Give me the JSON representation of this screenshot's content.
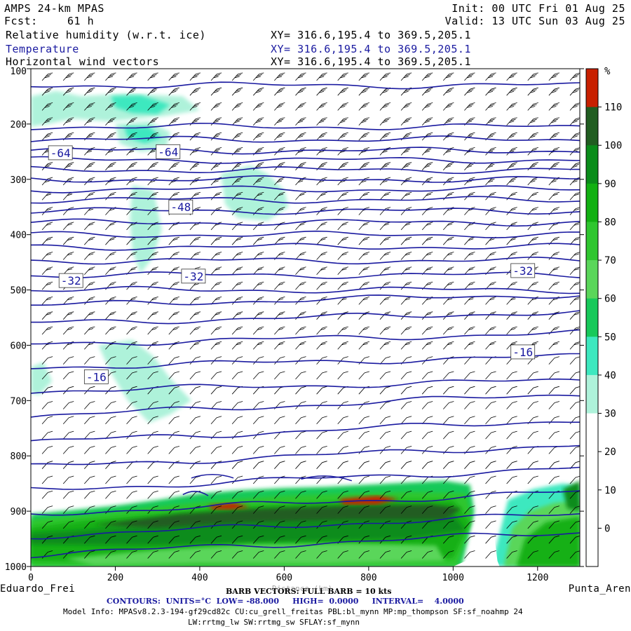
{
  "header": {
    "title": "AMPS 24-km MPAS",
    "forecast_label": "Fcst:",
    "forecast_value": "61 h",
    "init": "Init: 00 UTC Fri 01 Aug 25",
    "valid": "Valid: 13 UTC Sun 03 Aug 25",
    "fields": [
      {
        "name": "Relative humidity (w.r.t. ice)",
        "xy": "XY= 316.6,195.4 to 369.5,205.1"
      },
      {
        "name": "Temperature",
        "xy": "XY= 316.6,195.4 to 369.5,205.1"
      },
      {
        "name": "Horizontal wind vectors",
        "xy": "XY= 316.6,195.4 to 369.5,205.1"
      }
    ]
  },
  "footer": {
    "left_station": "Eduardo_Frei",
    "right_station": "Punta_Aren",
    "barb_info": "BARB VECTORS: FULL BARB = 10 kts",
    "xlabel": "Distance (km)",
    "contours": "CONTOURS:  UNITS=°C  LOW= -88.000     HIGH=  0.0000     INTERVAL=    4.0000",
    "model_info_1": "Model Info: MPASv8.2.3-194-gf29cd82c CU:cu_grell_freitas PBL:bl_mynn MP:mp_thompson SF:sf_noahmp 24",
    "model_info_2": "LW:rrtmg_lw SW:rrtmg_sw SFLAY:sf_mynn"
  },
  "colors": {
    "temp_contour": "#1a1aa0",
    "rh_30": "#aef2da",
    "rh_40": "#3de8bf",
    "rh_50": "#17c95a",
    "rh_60": "#5ad65a",
    "rh_70": "#2fc62f",
    "rh_80": "#12b012",
    "rh_90": "#0a8c1a",
    "rh_100": "#215d21",
    "rh_110": "#c82000"
  },
  "chart_data": {
    "type": "heatmap",
    "description_kind": "vertical cross-section",
    "x_range_km": [
      0,
      1300
    ],
    "y_range_hpa": [
      1000,
      100
    ],
    "x_ticks": [
      0,
      200,
      400,
      600,
      800,
      1000,
      1200
    ],
    "y_ticks": [
      100,
      200,
      300,
      400,
      500,
      600,
      700,
      800,
      900,
      1000
    ],
    "colorbar": {
      "unit": "%",
      "labels": [
        110,
        100,
        90,
        80,
        70,
        60,
        50,
        40,
        30,
        20,
        10,
        0
      ],
      "levels": [
        {
          "min": 110,
          "color": "#c82000"
        },
        {
          "min": 100,
          "color": "#215d21"
        },
        {
          "min": 90,
          "color": "#0a8c1a"
        },
        {
          "min": 80,
          "color": "#12b012"
        },
        {
          "min": 70,
          "color": "#2fc62f"
        },
        {
          "min": 60,
          "color": "#5ad65a"
        },
        {
          "min": 50,
          "color": "#17c95a"
        },
        {
          "min": 40,
          "color": "#3de8bf"
        },
        {
          "min": 30,
          "color": "#aef2da"
        },
        {
          "min": 20,
          "color": "#ffffff"
        },
        {
          "min": 10,
          "color": "#ffffff"
        },
        {
          "min": 0,
          "color": "#ffffff"
        }
      ]
    },
    "temperature_labels": [
      {
        "value": "-64",
        "x_km": 70,
        "p_hpa": 252
      },
      {
        "value": "-64",
        "x_km": 325,
        "p_hpa": 250
      },
      {
        "value": "-48",
        "x_km": 355,
        "p_hpa": 350
      },
      {
        "value": "-32",
        "x_km": 95,
        "p_hpa": 483
      },
      {
        "value": "-32",
        "x_km": 385,
        "p_hpa": 475
      },
      {
        "value": "-32",
        "x_km": 1165,
        "p_hpa": 465
      },
      {
        "value": "-16",
        "x_km": 155,
        "p_hpa": 657
      },
      {
        "value": "-16",
        "x_km": 1165,
        "p_hpa": 612
      }
    ],
    "temperature_isotherm_pressures_hpa": [
      130,
      205,
      228,
      248,
      265,
      283,
      300,
      318,
      337,
      357,
      378,
      400,
      422,
      447,
      473,
      500,
      528,
      560,
      598,
      640,
      683,
      728,
      775,
      820,
      862,
      905,
      945,
      978
    ]
  }
}
